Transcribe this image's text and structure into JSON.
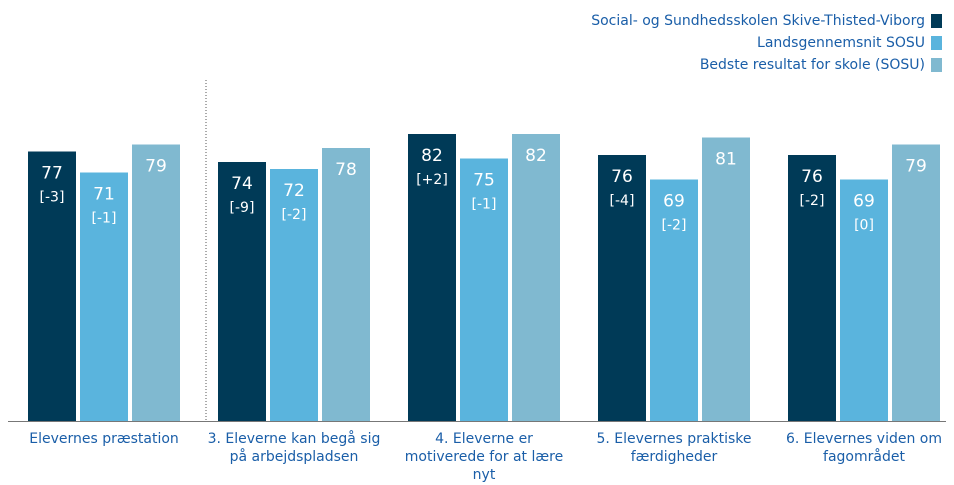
{
  "chart_data": {
    "type": "bar",
    "categories": [
      "Elevernes præstation",
      "3. Eleverne kan begå sig på arbejdspladsen",
      "4. Eleverne er motiverede for at lære nyt",
      "5. Elevernes praktiske færdigheder",
      "6. Elevernes viden om fagområdet"
    ],
    "category_lines": [
      [
        "Elevernes præstation"
      ],
      [
        "3. Eleverne kan begå sig",
        "på arbejdspladsen"
      ],
      [
        "4. Eleverne er",
        "motiverede for at lære",
        "nyt"
      ],
      [
        "5. Elevernes praktiske",
        "færdigheder"
      ],
      [
        "6. Elevernes viden om",
        "fagområdet"
      ]
    ],
    "series": [
      {
        "name": "Social- og Sundhedsskolen Skive-Thisted-Viborg",
        "color": "#003a57",
        "label_color": "#ffffff",
        "values": [
          77,
          74,
          82,
          76,
          76
        ],
        "changes": [
          "[-3]",
          "[-9]",
          "[+2]",
          "[-4]",
          "[-2]"
        ]
      },
      {
        "name": "Landsgennemsnit SOSU",
        "color": "#5ab4dd",
        "label_color": "#ffffff",
        "values": [
          71,
          72,
          75,
          69,
          69
        ],
        "changes": [
          "[-1]",
          "[-2]",
          "[-1]",
          "[-2]",
          "[0]"
        ]
      },
      {
        "name": "Bedste resultat for skole (SOSU)",
        "color": "#80b9d0",
        "label_color": "#ffffff",
        "values": [
          79,
          78,
          82,
          81,
          79
        ],
        "changes": []
      }
    ],
    "ylim": [
      0,
      100
    ],
    "grid": false,
    "legend_position": "top-right",
    "separator_after_category": 0
  }
}
